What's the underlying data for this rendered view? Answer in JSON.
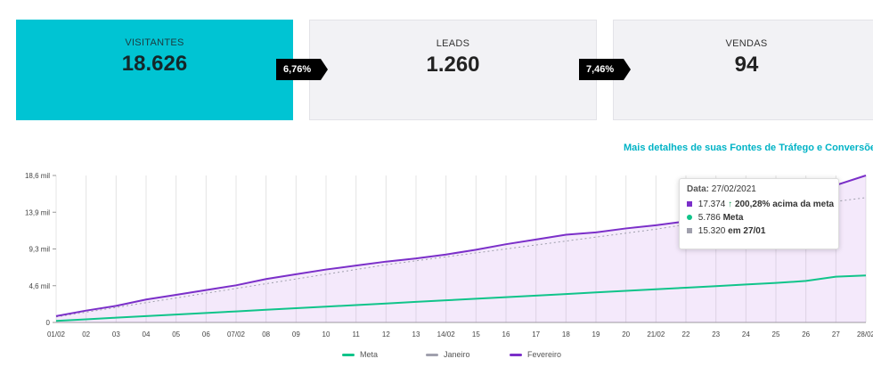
{
  "cards": [
    {
      "label": "VISITANTES",
      "value": "18.626"
    },
    {
      "label": "LEADS",
      "value": "1.260"
    },
    {
      "label": "VENDAS",
      "value": "94"
    }
  ],
  "conversion_rates": [
    "6,76%",
    "7,46%"
  ],
  "details_link": "Mais detalhes de suas Fontes de Tráfego e Conversões",
  "tooltip": {
    "date_label": "Data:",
    "date_value": "27/02/2021",
    "current_value": "17.374",
    "above_goal": "200,28% acima da meta",
    "goal_value": "5.786",
    "goal_label": "Meta",
    "previous_value": "15.320",
    "previous_label": "em 27/01"
  },
  "colors": {
    "accent": "#00c4d3",
    "fevereiro": "#7b2fc9",
    "meta": "#10c48a",
    "janeiro": "#a0a0ad"
  },
  "chart_data": {
    "type": "area",
    "x": [
      "01/02",
      "02",
      "03",
      "04",
      "05",
      "06",
      "07/02",
      "08",
      "09",
      "10",
      "11",
      "12",
      "13",
      "14/02",
      "15",
      "16",
      "17",
      "18",
      "19",
      "20",
      "21/02",
      "22",
      "23",
      "24",
      "25",
      "26",
      "27",
      "28/02"
    ],
    "yticks": [
      "0",
      "4,6 mil",
      "9,3 mil",
      "13,9 mil",
      "18,6 mil"
    ],
    "ylim": [
      0,
      18600
    ],
    "series": [
      {
        "name": "Fevereiro",
        "values": [
          800,
          1500,
          2100,
          2900,
          3500,
          4100,
          4700,
          5500,
          6100,
          6700,
          7200,
          7700,
          8100,
          8600,
          9200,
          9900,
          10500,
          11100,
          11400,
          11900,
          12300,
          12800,
          13400,
          14000,
          14700,
          15400,
          17374,
          18600
        ]
      },
      {
        "name": "Meta",
        "values": [
          200,
          400,
          600,
          800,
          1000,
          1200,
          1400,
          1600,
          1800,
          2000,
          2200,
          2400,
          2600,
          2800,
          3000,
          3200,
          3400,
          3600,
          3800,
          4000,
          4200,
          4400,
          4600,
          4800,
          5000,
          5250,
          5786,
          5950
        ]
      },
      {
        "name": "Janeiro",
        "values": [
          700,
          1300,
          1900,
          2500,
          3100,
          3700,
          4300,
          4900,
          5500,
          6100,
          6700,
          7300,
          7800,
          8300,
          8800,
          9300,
          9800,
          10300,
          10800,
          11300,
          11800,
          12400,
          13000,
          13600,
          14200,
          14800,
          15320,
          15800
        ]
      }
    ],
    "legend": [
      "Meta",
      "Janeiro",
      "Fevereiro"
    ]
  }
}
